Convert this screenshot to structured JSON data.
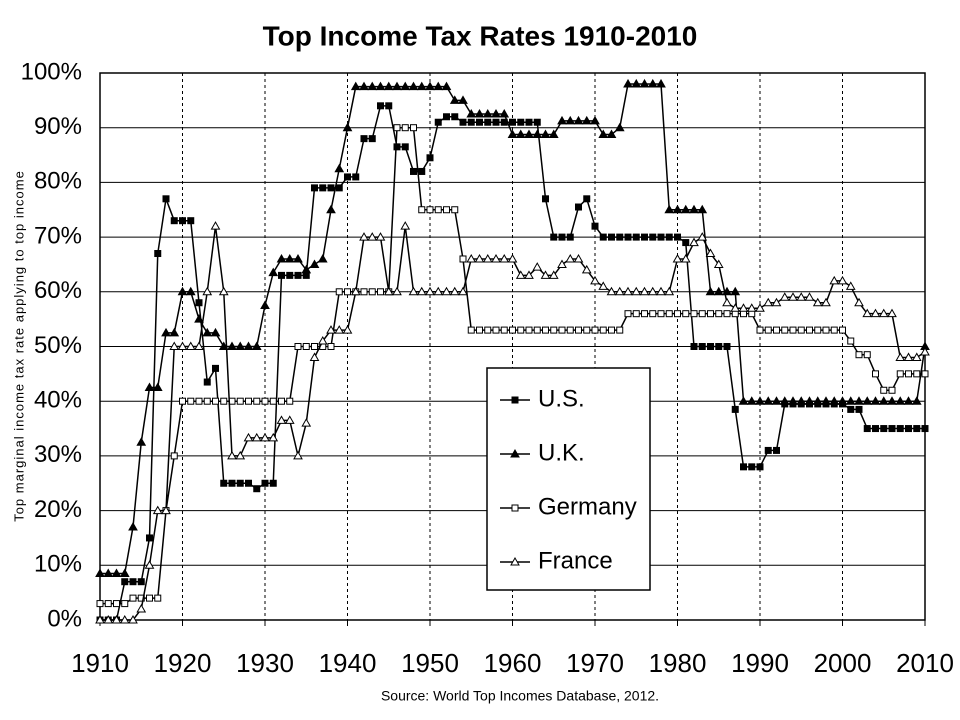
{
  "chart_data": {
    "type": "line",
    "title": "Top Income Tax Rates 1910-2010",
    "ylabel": "Top marginal income tax rate applying to top income",
    "source": "Source: World Top Incomes Database, 2012.",
    "x": [
      1910,
      1911,
      1912,
      1913,
      1914,
      1915,
      1916,
      1917,
      1918,
      1919,
      1920,
      1921,
      1922,
      1923,
      1924,
      1925,
      1926,
      1927,
      1928,
      1929,
      1930,
      1931,
      1932,
      1933,
      1934,
      1935,
      1936,
      1937,
      1938,
      1939,
      1940,
      1941,
      1942,
      1943,
      1944,
      1945,
      1946,
      1947,
      1948,
      1949,
      1950,
      1951,
      1952,
      1953,
      1954,
      1955,
      1956,
      1957,
      1958,
      1959,
      1960,
      1961,
      1962,
      1963,
      1964,
      1965,
      1966,
      1967,
      1968,
      1969,
      1970,
      1971,
      1972,
      1973,
      1974,
      1975,
      1976,
      1977,
      1978,
      1979,
      1980,
      1981,
      1982,
      1983,
      1984,
      1985,
      1986,
      1987,
      1988,
      1989,
      1990,
      1991,
      1992,
      1993,
      1994,
      1995,
      1996,
      1997,
      1998,
      1999,
      2000,
      2001,
      2002,
      2003,
      2004,
      2005,
      2006,
      2007,
      2008,
      2009,
      2010
    ],
    "xlim": [
      1910,
      2010
    ],
    "xticks": [
      1910,
      1920,
      1930,
      1940,
      1950,
      1960,
      1970,
      1980,
      1990,
      2000,
      2010
    ],
    "ylim": [
      0,
      100
    ],
    "yticks": [
      {
        "value": 0,
        "label": "0%"
      },
      {
        "value": 10,
        "label": "10%"
      },
      {
        "value": 20,
        "label": "20%"
      },
      {
        "value": 30,
        "label": "30%"
      },
      {
        "value": 40,
        "label": "40%"
      },
      {
        "value": 50,
        "label": "50%"
      },
      {
        "value": 60,
        "label": "60%"
      },
      {
        "value": 70,
        "label": "70%"
      },
      {
        "value": 80,
        "label": "80%"
      },
      {
        "value": 90,
        "label": "90%"
      },
      {
        "value": 100,
        "label": "100%"
      }
    ],
    "grid": true,
    "series": [
      {
        "name": "U.S.",
        "color": "#000000",
        "marker": "square",
        "filled": true,
        "values": [
          0,
          0,
          0,
          7,
          7,
          7,
          15,
          67,
          77,
          73,
          73,
          73,
          58,
          43.5,
          46,
          25,
          25,
          25,
          25,
          24,
          25,
          25,
          63,
          63,
          63,
          63,
          79,
          79,
          79,
          79,
          81,
          81,
          88,
          88,
          94,
          94,
          86.5,
          86.5,
          82,
          82,
          84.5,
          91,
          92,
          92,
          91,
          91,
          91,
          91,
          91,
          91,
          91,
          91,
          91,
          91,
          77,
          70,
          70,
          70,
          75.5,
          77,
          72,
          70,
          70,
          70,
          70,
          70,
          70,
          70,
          70,
          70,
          70,
          69,
          50,
          50,
          50,
          50,
          50,
          38.5,
          28,
          28,
          28,
          31,
          31,
          39.5,
          39.5,
          39.5,
          39.5,
          39.5,
          39.5,
          39.5,
          39.5,
          38.5,
          38.5,
          35,
          35,
          35,
          35,
          35,
          35,
          35,
          35
        ]
      },
      {
        "name": "U.K.",
        "color": "#000000",
        "marker": "triangle",
        "filled": true,
        "values": [
          8.5,
          8.5,
          8.5,
          8.5,
          17,
          32.5,
          42.5,
          42.5,
          52.5,
          52.5,
          60,
          60,
          55,
          52.5,
          52.5,
          50,
          50,
          50,
          50,
          50,
          57.5,
          63.5,
          66,
          66,
          66,
          64,
          65,
          66,
          75,
          82.5,
          90,
          97.5,
          97.5,
          97.5,
          97.5,
          97.5,
          97.5,
          97.5,
          97.5,
          97.5,
          97.5,
          97.5,
          97.5,
          95,
          95,
          92.5,
          92.5,
          92.5,
          92.5,
          92.5,
          88.75,
          88.75,
          88.75,
          88.75,
          88.75,
          88.75,
          91.25,
          91.25,
          91.25,
          91.25,
          91.25,
          88.75,
          88.75,
          90,
          98,
          98,
          98,
          98,
          98,
          75,
          75,
          75,
          75,
          75,
          60,
          60,
          60,
          60,
          40,
          40,
          40,
          40,
          40,
          40,
          40,
          40,
          40,
          40,
          40,
          40,
          40,
          40,
          40,
          40,
          40,
          40,
          40,
          40,
          40,
          40,
          50
        ]
      },
      {
        "name": "Germany",
        "color": "#000000",
        "marker": "square",
        "filled": false,
        "values": [
          3,
          3,
          3,
          3,
          4,
          4,
          4,
          4,
          20,
          30,
          40,
          40,
          40,
          40,
          40,
          40,
          40,
          40,
          40,
          40,
          40,
          40,
          40,
          40,
          50,
          50,
          50,
          50,
          50,
          60,
          60,
          60,
          60,
          60,
          60,
          60,
          90,
          90,
          90,
          75,
          75,
          75,
          75,
          75,
          66,
          53,
          53,
          53,
          53,
          53,
          53,
          53,
          53,
          53,
          53,
          53,
          53,
          53,
          53,
          53,
          53,
          53,
          53,
          53,
          56,
          56,
          56,
          56,
          56,
          56,
          56,
          56,
          56,
          56,
          56,
          56,
          56,
          56,
          56,
          56,
          53,
          53,
          53,
          53,
          53,
          53,
          53,
          53,
          53,
          53,
          53,
          51,
          48.5,
          48.5,
          45,
          42,
          42,
          45,
          45,
          45,
          45
        ]
      },
      {
        "name": "France",
        "color": "#000000",
        "marker": "triangle",
        "filled": false,
        "values": [
          0,
          0,
          0,
          0,
          0,
          2,
          10,
          20,
          20,
          50,
          50,
          50,
          50,
          60,
          72,
          60,
          30,
          30,
          33.3,
          33.3,
          33.3,
          33.3,
          36.5,
          36.5,
          30,
          36,
          48,
          51,
          53,
          53,
          53,
          60,
          70,
          70,
          70,
          60,
          60,
          72,
          60,
          60,
          60,
          60,
          60,
          60,
          60,
          66,
          66,
          66,
          66,
          66,
          66,
          63,
          63,
          64.5,
          63,
          63,
          65,
          66,
          66,
          64,
          62,
          61,
          60,
          60,
          60,
          60,
          60,
          60,
          60,
          60,
          66,
          66,
          69,
          70,
          67,
          65,
          58,
          57,
          57,
          57,
          57,
          58,
          58,
          59,
          59,
          59,
          59,
          58,
          58,
          62,
          62,
          61,
          58,
          56,
          56,
          56,
          56,
          48,
          48,
          48,
          49
        ]
      }
    ]
  }
}
